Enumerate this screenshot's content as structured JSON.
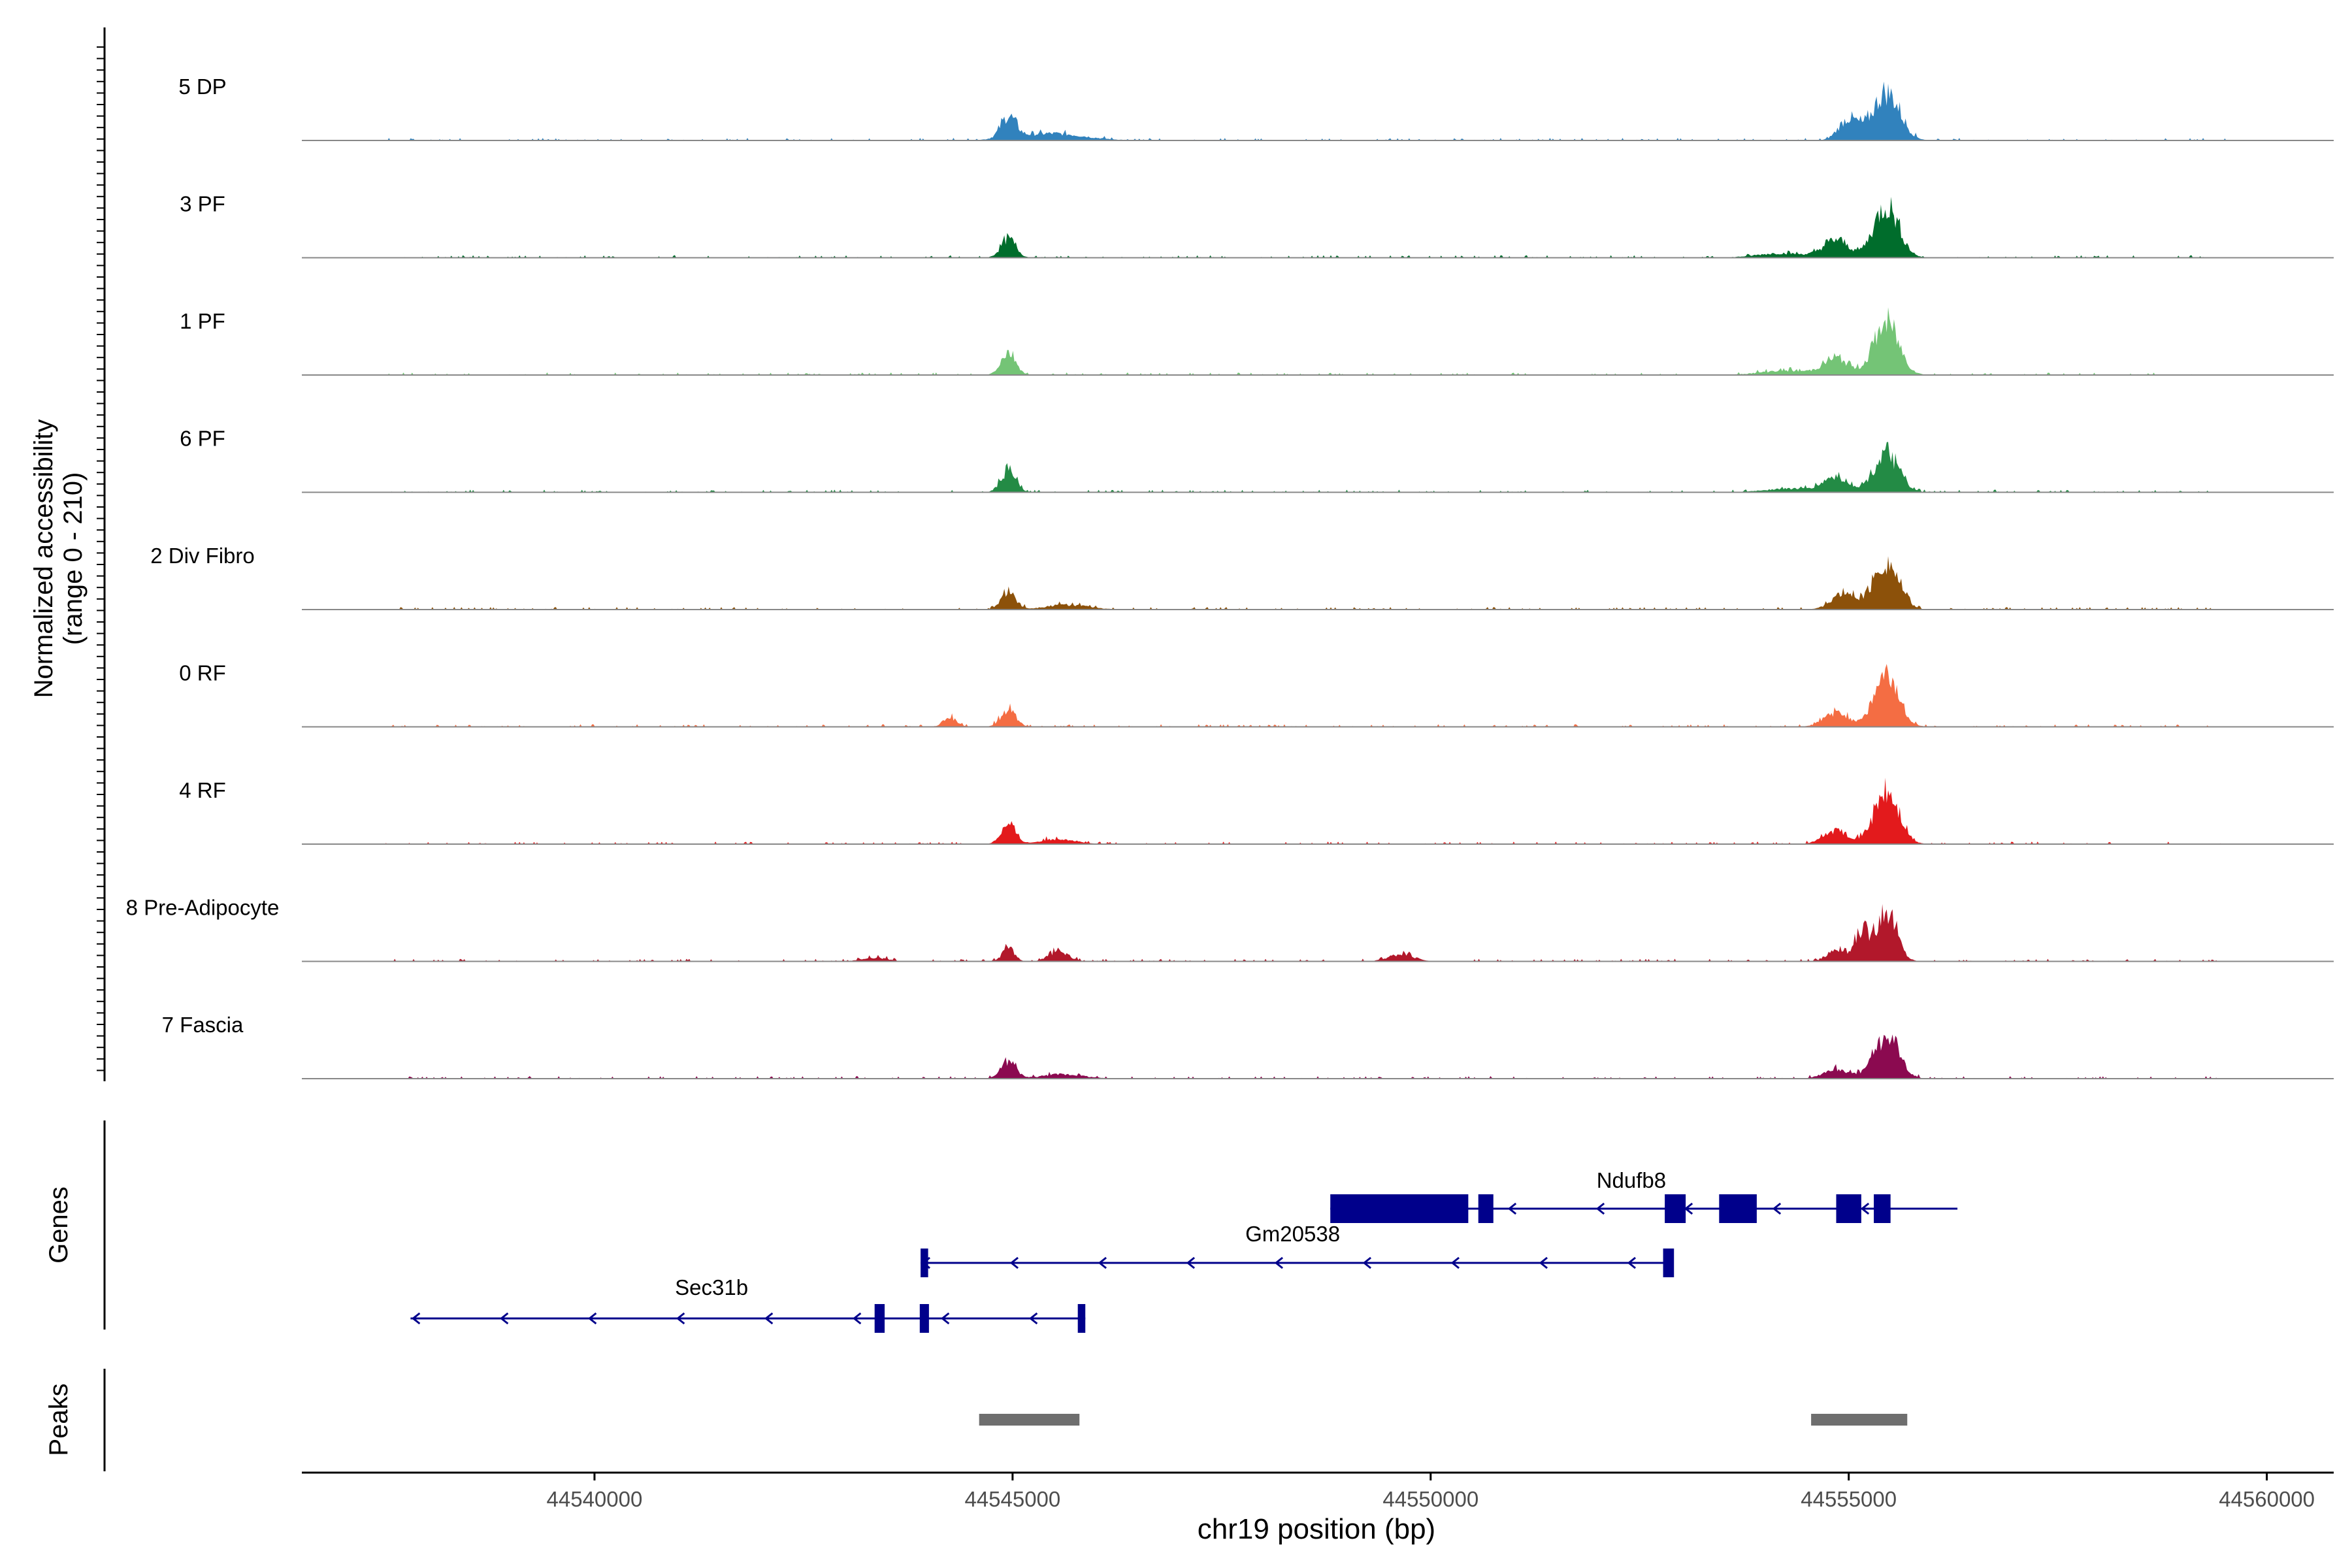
{
  "chart_data": {
    "type": "area",
    "title": "",
    "xlabel": "chr19 position (bp)",
    "ylabel": "Normalized accessibility",
    "ylabel_range": "(range 0 - 210)",
    "ylim": [
      0,
      210
    ],
    "xlim": [
      44536500,
      44560800
    ],
    "x_ticks": [
      44540000,
      44545000,
      44550000,
      44555000,
      44560000
    ],
    "x_tick_labels": [
      "44540000",
      "44545000",
      "44550000",
      "44555000",
      "44560000"
    ],
    "peak_centers_bp": [
      44544950,
      44555450
    ],
    "series": [
      {
        "name": "5 DP",
        "color": "#3182bd",
        "peaks": [
          [
            44544950,
            85,
            90
          ],
          [
            44555000,
            85,
            120
          ],
          [
            44555450,
            190,
            160
          ],
          [
            44545450,
            28,
            400
          ]
        ]
      },
      {
        "name": "3 PF",
        "color": "#006d2c",
        "peaks": [
          [
            44544950,
            75,
            90
          ],
          [
            44554850,
            70,
            150
          ],
          [
            44555450,
            205,
            150
          ],
          [
            44554200,
            18,
            300
          ]
        ]
      },
      {
        "name": "1 PF",
        "color": "#74c476",
        "peaks": [
          [
            44544950,
            90,
            90
          ],
          [
            44554850,
            65,
            150
          ],
          [
            44555450,
            205,
            150
          ],
          [
            44554250,
            18,
            300
          ]
        ]
      },
      {
        "name": "6 PF",
        "color": "#238b45",
        "peaks": [
          [
            44544950,
            85,
            90
          ],
          [
            44554850,
            60,
            150
          ],
          [
            44555450,
            150,
            150
          ],
          [
            44554300,
            15,
            300
          ]
        ]
      },
      {
        "name": "2 Div Fibro",
        "color": "#8c510a",
        "peaks": [
          [
            44544950,
            70,
            90
          ],
          [
            44554950,
            65,
            150
          ],
          [
            44555450,
            190,
            150
          ],
          [
            44545650,
            20,
            250
          ]
        ]
      },
      {
        "name": "0 RF",
        "color": "#f46d43",
        "peaks": [
          [
            44544950,
            70,
            90
          ],
          [
            44544250,
            40,
            80
          ],
          [
            44554850,
            55,
            150
          ],
          [
            44555450,
            195,
            150
          ]
        ]
      },
      {
        "name": "4 RF",
        "color": "#e31a1c",
        "peaks": [
          [
            44544950,
            75,
            90
          ],
          [
            44554850,
            55,
            150
          ],
          [
            44555450,
            200,
            150
          ],
          [
            44545550,
            22,
            200
          ]
        ]
      },
      {
        "name": "8 Pre-Adipocyte",
        "color": "#b2182b",
        "peaks": [
          [
            44544950,
            60,
            70
          ],
          [
            44545550,
            40,
            120
          ],
          [
            44549650,
            30,
            150
          ],
          [
            44554850,
            50,
            100
          ],
          [
            44555150,
            120,
            80
          ],
          [
            44555450,
            210,
            120
          ],
          [
            44543350,
            15,
            150
          ]
        ]
      },
      {
        "name": "7 Fascia",
        "color": "#8b0a50",
        "peaks": [
          [
            44544950,
            70,
            90
          ],
          [
            44554850,
            40,
            150
          ],
          [
            44555450,
            170,
            150
          ],
          [
            44545600,
            18,
            250
          ]
        ]
      }
    ],
    "genes_label": "Genes",
    "genes": [
      {
        "name": "Ndufb8",
        "start": 44548800,
        "end": 44556300,
        "strand": "-",
        "exons": [
          [
            44548800,
            44550450
          ],
          [
            44550570,
            44550750
          ],
          [
            44552800,
            44553050
          ],
          [
            44553450,
            44553900
          ],
          [
            44554850,
            44555150
          ],
          [
            44555300,
            44555500
          ]
        ]
      },
      {
        "name": "Gm20538",
        "start": 44543900,
        "end": 44552900,
        "strand": "-",
        "exons": [
          [
            44543900,
            44543990
          ],
          [
            44552780,
            44552910
          ]
        ]
      },
      {
        "name": "Sec31b",
        "start": 44537800,
        "end": 44545870,
        "strand": "-",
        "exons": [
          [
            44543350,
            44543470
          ],
          [
            44543890,
            44544000
          ],
          [
            44545780,
            44545870
          ]
        ]
      }
    ],
    "peaks_label": "Peaks",
    "called_peaks": [
      [
        44544600,
        44545800
      ],
      [
        44554550,
        44555700
      ]
    ]
  }
}
